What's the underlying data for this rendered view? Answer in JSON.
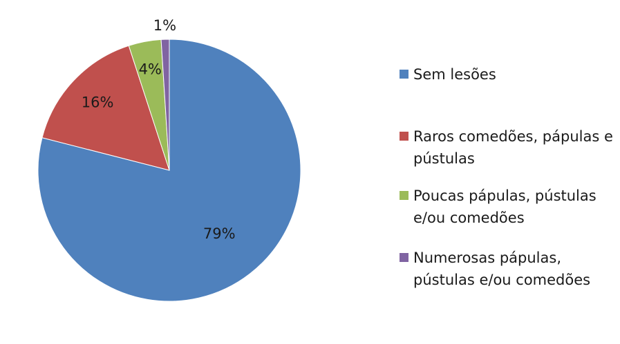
{
  "chart_data": {
    "type": "pie",
    "title": "",
    "legend_position": "right",
    "slices": [
      {
        "name": "Sem lesões",
        "value": 79,
        "label": "79%",
        "color": "#4f81bd"
      },
      {
        "name": "Raros comedões, pápulas e pústulas",
        "value": 16,
        "label": "16%",
        "color": "#c0504d"
      },
      {
        "name": "Poucas pápulas, pústulas e/ou comedões",
        "value": 4,
        "label": "4%",
        "color": "#9bbb59"
      },
      {
        "name": "Numerosas pápulas, pústulas e/ou comedões",
        "value": 1,
        "label": "1%",
        "color": "#8064a2"
      }
    ]
  }
}
